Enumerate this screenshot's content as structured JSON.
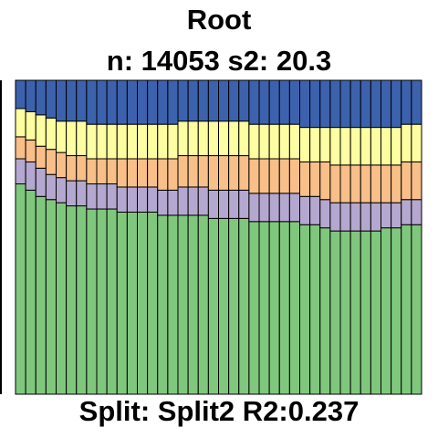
{
  "title": "Root",
  "subtitle": "n: 14053 s2: 20.3",
  "footer": "Split: Split2 R2:0.237",
  "chart_data": {
    "type": "bar",
    "stacked": true,
    "normalized": true,
    "bar_count": 40,
    "colors": [
      "#80C77E",
      "#B5A8D0",
      "#F8BF89",
      "#FDFDA1",
      "#3C62AD"
    ],
    "series": [
      {
        "values": [
          0.67,
          0.65,
          0.63,
          0.62,
          0.61,
          0.6,
          0.6,
          0.59,
          0.59,
          0.59,
          0.58,
          0.58,
          0.58,
          0.58,
          0.57,
          0.57,
          0.57,
          0.57,
          0.57,
          0.56,
          0.56,
          0.56,
          0.56,
          0.55,
          0.55,
          0.55,
          0.55,
          0.55,
          0.54,
          0.54,
          0.53,
          0.52,
          0.52,
          0.52,
          0.52,
          0.52,
          0.53,
          0.53,
          0.54,
          0.54
        ]
      },
      {
        "values": [
          0.08,
          0.09,
          0.09,
          0.08,
          0.08,
          0.08,
          0.08,
          0.08,
          0.08,
          0.08,
          0.08,
          0.08,
          0.08,
          0.08,
          0.08,
          0.08,
          0.09,
          0.09,
          0.09,
          0.09,
          0.09,
          0.09,
          0.09,
          0.09,
          0.09,
          0.09,
          0.09,
          0.09,
          0.09,
          0.09,
          0.09,
          0.09,
          0.09,
          0.09,
          0.09,
          0.09,
          0.08,
          0.08,
          0.08,
          0.08
        ]
      },
      {
        "values": [
          0.07,
          0.07,
          0.07,
          0.08,
          0.08,
          0.08,
          0.08,
          0.08,
          0.08,
          0.08,
          0.09,
          0.09,
          0.09,
          0.09,
          0.1,
          0.1,
          0.1,
          0.1,
          0.1,
          0.11,
          0.11,
          0.11,
          0.11,
          0.11,
          0.11,
          0.11,
          0.11,
          0.11,
          0.11,
          0.11,
          0.12,
          0.12,
          0.12,
          0.12,
          0.12,
          0.12,
          0.12,
          0.12,
          0.12,
          0.12
        ]
      },
      {
        "values": [
          0.09,
          0.09,
          0.1,
          0.1,
          0.1,
          0.11,
          0.11,
          0.11,
          0.11,
          0.11,
          0.11,
          0.11,
          0.11,
          0.11,
          0.11,
          0.11,
          0.11,
          0.11,
          0.11,
          0.11,
          0.11,
          0.11,
          0.11,
          0.11,
          0.11,
          0.11,
          0.11,
          0.11,
          0.11,
          0.11,
          0.11,
          0.12,
          0.12,
          0.12,
          0.12,
          0.12,
          0.12,
          0.12,
          0.12,
          0.12
        ]
      },
      {
        "values": [
          0.09,
          0.1,
          0.11,
          0.12,
          0.13,
          0.13,
          0.13,
          0.14,
          0.14,
          0.14,
          0.14,
          0.14,
          0.14,
          0.14,
          0.14,
          0.14,
          0.13,
          0.13,
          0.13,
          0.13,
          0.13,
          0.13,
          0.13,
          0.14,
          0.14,
          0.14,
          0.14,
          0.14,
          0.15,
          0.15,
          0.15,
          0.15,
          0.15,
          0.15,
          0.15,
          0.15,
          0.15,
          0.15,
          0.14,
          0.14
        ]
      }
    ],
    "ylim": [
      0,
      1
    ]
  }
}
